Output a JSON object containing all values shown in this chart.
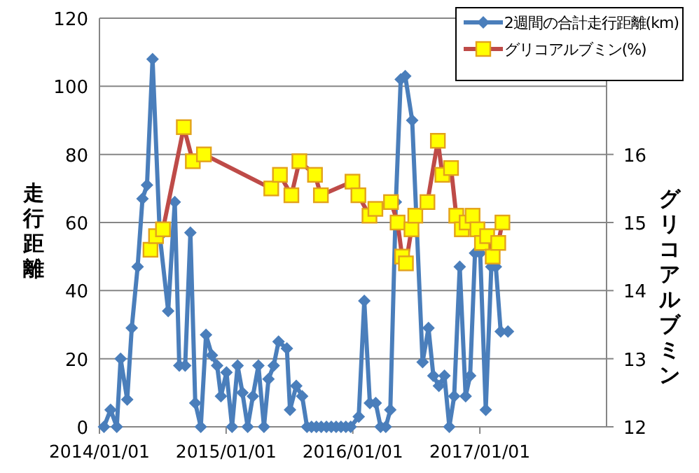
{
  "chart_data": {
    "type": "line",
    "ylabel": "走行距離",
    "y2label": "グリコアルブミン",
    "xlim": [
      "2014-01-01",
      "2018-01-01"
    ],
    "xticks": [
      {
        "value": "2014-01-01",
        "label": "2014/01/01"
      },
      {
        "value": "2015-01-01",
        "label": "2015/01/01"
      },
      {
        "value": "2016-01-01",
        "label": "2016/01/01"
      },
      {
        "value": "2017-01-01",
        "label": "2017/01/01"
      }
    ],
    "ylim": [
      0,
      120
    ],
    "yticks": [
      0,
      20,
      40,
      60,
      80,
      100,
      120
    ],
    "y2lim": [
      12,
      18
    ],
    "y2ticks": [
      12,
      13,
      14,
      15,
      16
    ],
    "grid": "y",
    "legend": "top right",
    "series": [
      {
        "name": "2週間の合計走行距離(km)",
        "color": "#4a7ebb",
        "marker": "diamond",
        "x": [
          "2014-01-14",
          "2014-02-02",
          "2014-02-20",
          "2014-03-03",
          "2014-03-22",
          "2014-04-04",
          "2014-04-21",
          "2014-05-05",
          "2014-05-18",
          "2014-06-03",
          "2014-06-24",
          "2014-07-18",
          "2014-08-06",
          "2014-08-19",
          "2014-09-05",
          "2014-09-20",
          "2014-10-04",
          "2014-10-20",
          "2014-11-04",
          "2014-11-21",
          "2014-12-06",
          "2014-12-17",
          "2015-01-02",
          "2015-01-18",
          "2015-02-03",
          "2015-02-17",
          "2015-03-04",
          "2015-03-19",
          "2015-04-04",
          "2015-04-20",
          "2015-05-03",
          "2015-05-18",
          "2015-06-01",
          "2015-06-25",
          "2015-07-04",
          "2015-07-22",
          "2015-08-08",
          "2015-08-22",
          "2015-09-04",
          "2015-09-18",
          "2015-10-02",
          "2015-10-17",
          "2015-10-31",
          "2015-11-14",
          "2015-11-28",
          "2015-12-12",
          "2015-12-26",
          "2016-01-18",
          "2016-02-03",
          "2016-02-19",
          "2016-03-07",
          "2016-03-21",
          "2016-04-05",
          "2016-04-18",
          "2016-05-04",
          "2016-05-18",
          "2016-05-31",
          "2016-06-20",
          "2016-07-20",
          "2016-08-06",
          "2016-08-20",
          "2016-09-05",
          "2016-09-21",
          "2016-10-05",
          "2016-10-19",
          "2016-11-04",
          "2016-11-21",
          "2016-12-04",
          "2016-12-18",
          "2017-01-02",
          "2017-01-18",
          "2017-02-03",
          "2017-02-16",
          "2017-03-02",
          "2017-03-23"
        ],
        "values": [
          0,
          5,
          0,
          20,
          8,
          29,
          47,
          67,
          71,
          108,
          56,
          34,
          66,
          18,
          18,
          57,
          7,
          0,
          27,
          21,
          18,
          9,
          16,
          0,
          18,
          10,
          0,
          9,
          18,
          0,
          14,
          18,
          25,
          23,
          5,
          12,
          9,
          0,
          0,
          0,
          0,
          0,
          0,
          0,
          0,
          0,
          0,
          3,
          37,
          7,
          7,
          0,
          0,
          5,
          66,
          102,
          103,
          90,
          19,
          29,
          15,
          12,
          15,
          0,
          9,
          47,
          9,
          15,
          51,
          51,
          5,
          47,
          47,
          28,
          28
        ]
      },
      {
        "name": "グリコアルブミン(%)",
        "color": "#be4b48",
        "marker": "square",
        "axis": "y2",
        "x": [
          "2014-05-28",
          "2014-06-13",
          "2014-07-03",
          "2014-09-01",
          "2014-09-27",
          "2014-10-29",
          "2015-05-11",
          "2015-06-05",
          "2015-07-08",
          "2015-07-31",
          "2015-09-14",
          "2015-10-01",
          "2015-12-31",
          "2016-01-17",
          "2016-02-18",
          "2016-03-06",
          "2016-04-20",
          "2016-05-09",
          "2016-05-22",
          "2016-06-02",
          "2016-06-18",
          "2016-06-29",
          "2016-08-03",
          "2016-09-02",
          "2016-09-15",
          "2016-10-10",
          "2016-10-25",
          "2016-11-10",
          "2016-11-24",
          "2016-12-11",
          "2016-12-25",
          "2017-01-07",
          "2017-01-22",
          "2017-02-07",
          "2017-02-23",
          "2017-03-07"
        ],
        "values": [
          14.6,
          14.8,
          14.9,
          16.4,
          15.9,
          16.0,
          15.5,
          15.7,
          15.4,
          15.9,
          15.7,
          15.4,
          15.6,
          15.4,
          15.1,
          15.2,
          15.3,
          15.0,
          14.5,
          14.4,
          14.9,
          15.1,
          15.3,
          16.2,
          15.7,
          15.8,
          15.1,
          14.9,
          15.0,
          15.1,
          14.9,
          14.7,
          14.8,
          14.5,
          14.7,
          15.0
        ]
      }
    ]
  }
}
